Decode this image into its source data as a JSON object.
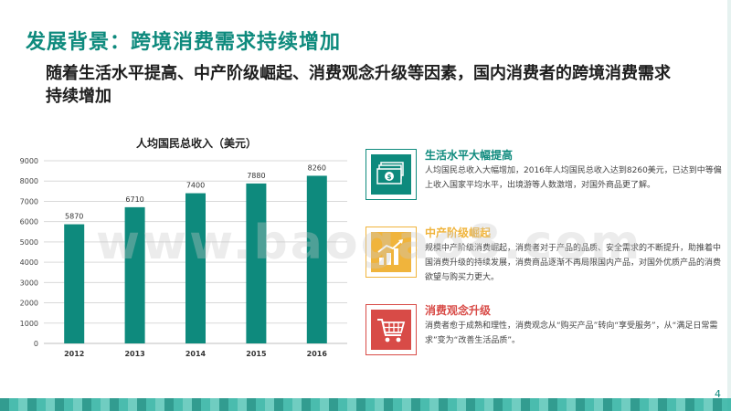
{
  "slide": {
    "title": "发展背景：跨境消费需求持续增加",
    "subtitle": "随着生活水平提高、中产阶级崛起、消费观念升级等因素，国内消费者的跨境消费需求持续增加",
    "page_number": "4",
    "watermark": "www.baogao8.com"
  },
  "colors": {
    "teal": "#0e8a7d",
    "gold": "#f0b43c",
    "red": "#d84b47"
  },
  "features": [
    {
      "icon": "money-icon",
      "title": "生活水平大幅提高",
      "color": "#0e8a7d",
      "desc": "人均国民总收入大幅增加，2016年人均国民总收入达到8260美元，已达到中等偏上收入国家平均水平，出境游等人数激增，对国外商品更了解。"
    },
    {
      "icon": "growth-chart-icon",
      "title": "中产阶级崛起",
      "color": "#f0b43c",
      "desc": "规模中产阶级消费崛起，消费者对于产品的品质、安全需求的不断提升，助推着中国消费升级的持续发展，消费商品逐渐不再局限国内产品，对国外优质产品的消费欲望与购买力更大。"
    },
    {
      "icon": "shopping-cart-icon",
      "title": "消费观念升级",
      "color": "#d84b47",
      "desc": "消费者愈于成熟和理性，消费观念从“购买产品”转向“享受服务”，从“满足日常需求”变为“改善生活品质”。"
    }
  ],
  "chart_data": {
    "type": "bar",
    "title": "人均国民总收入（美元）",
    "categories": [
      "2012",
      "2013",
      "2014",
      "2015",
      "2016"
    ],
    "values": [
      5870,
      6710,
      7400,
      7880,
      8260
    ],
    "ylim": [
      0,
      9000
    ],
    "yticks": [
      0,
      1000,
      2000,
      3000,
      4000,
      5000,
      6000,
      7000,
      8000,
      9000
    ],
    "grid": true,
    "bar_color": "#0e8a7d"
  }
}
